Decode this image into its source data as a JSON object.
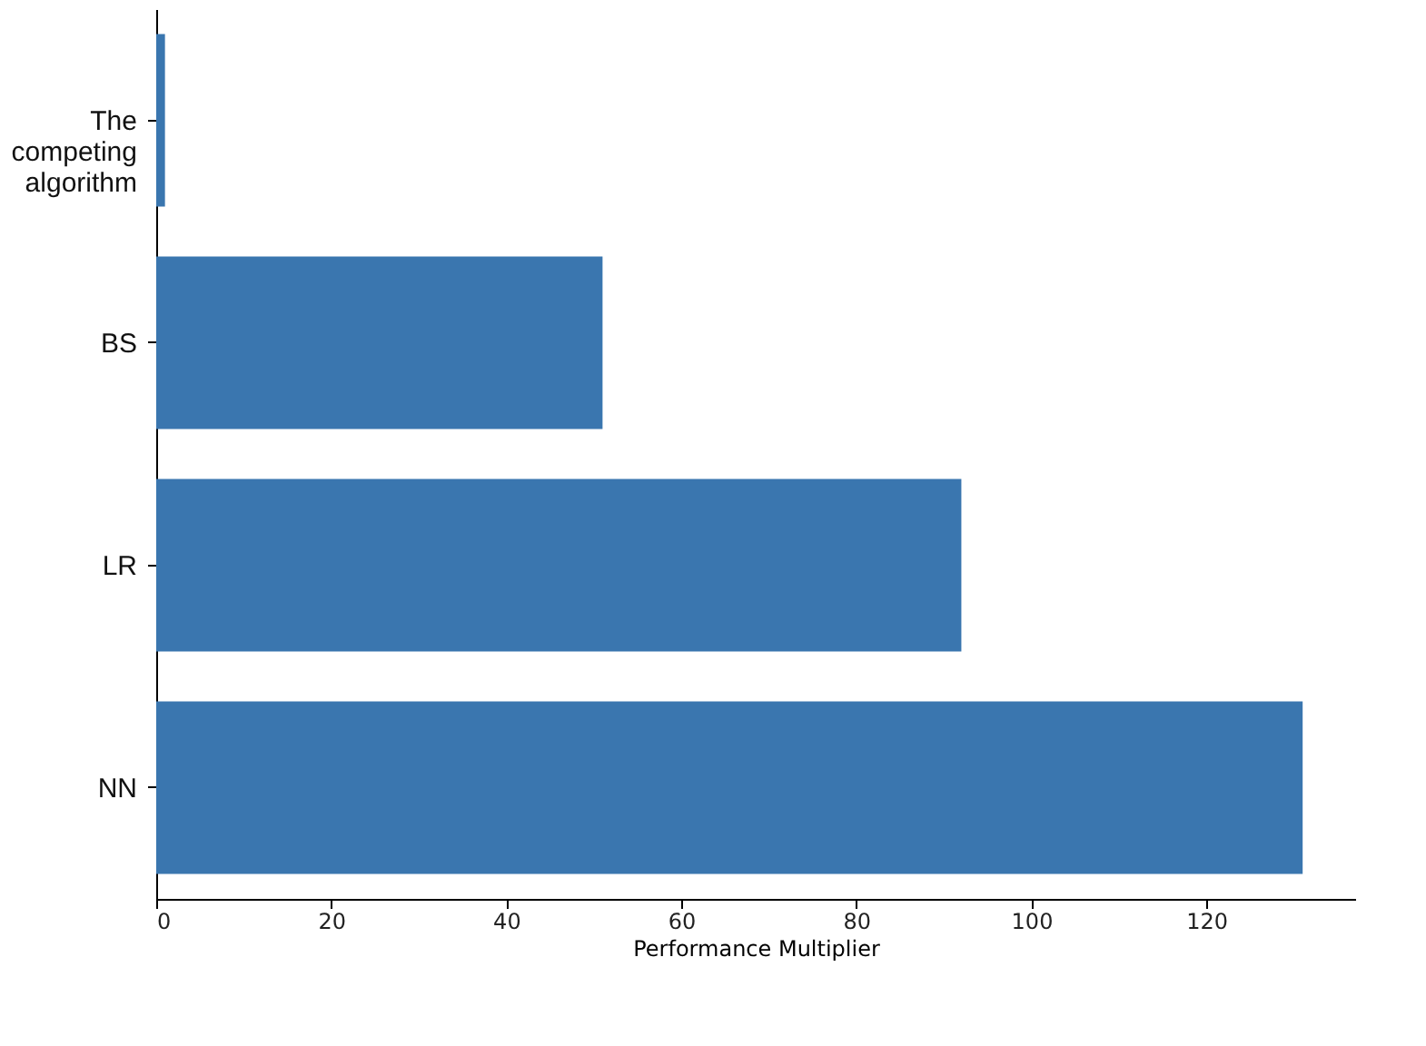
{
  "chart_data": {
    "type": "bar",
    "orientation": "horizontal",
    "xlabel": "Performance Multiplier",
    "categories": [
      "The competing algorithm",
      "BS",
      "LR",
      "NN"
    ],
    "values": [
      1,
      51,
      92,
      131
    ],
    "color": "#3a76af",
    "xlim": [
      0,
      137
    ],
    "xticks": [
      0,
      20,
      40,
      60,
      80,
      100,
      120
    ],
    "grid": false
  }
}
